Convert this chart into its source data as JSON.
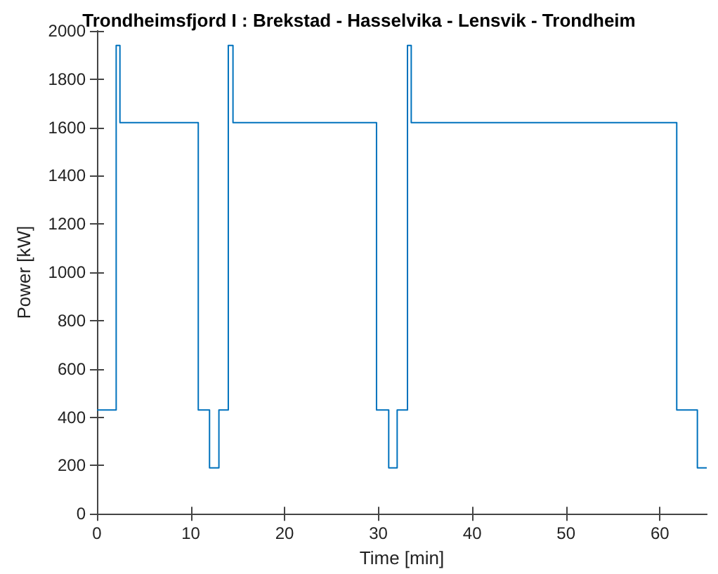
{
  "chart_data": {
    "type": "step",
    "title": "Trondheimsfjord I : Brekstad - Hasselvika - Lensvik - Trondheim",
    "xlabel": "Time [min]",
    "ylabel": "Power [kW]",
    "series": [
      {
        "color": "#0072bd",
        "x": [
          0,
          2.05,
          2.45,
          10.8,
          12.0,
          13.0,
          14.0,
          14.5,
          29.8,
          31.1,
          32.0,
          33.1,
          33.5,
          61.8,
          64.0,
          65
        ],
        "values": [
          430,
          1940,
          1620,
          430,
          190,
          430,
          1940,
          1620,
          430,
          190,
          430,
          1940,
          1620,
          430,
          190,
          190
        ]
      }
    ],
    "xlim": [
      0,
      65
    ],
    "xticks": [
      0,
      10,
      20,
      30,
      40,
      50,
      60
    ],
    "ylim": [
      0,
      2000
    ],
    "yticks": [
      0,
      200,
      400,
      600,
      800,
      1000,
      1200,
      1400,
      1600,
      1800,
      2000
    ],
    "grid": false,
    "marker": "none",
    "line_style": "solid"
  }
}
